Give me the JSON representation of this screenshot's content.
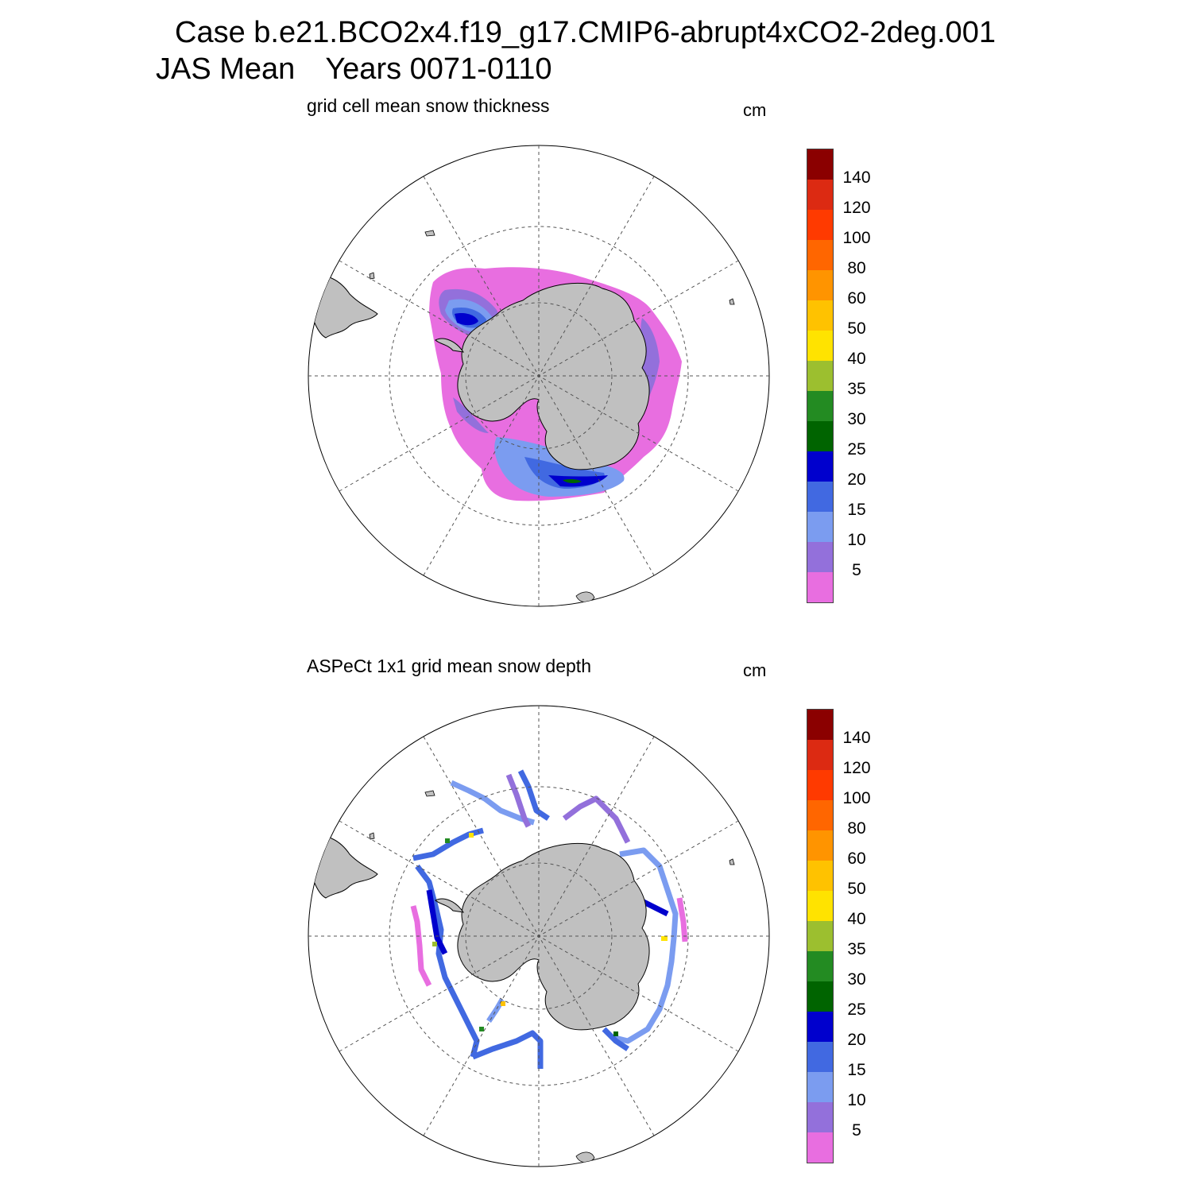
{
  "title": {
    "line1": "Case b.e21.BCO2x4.f19_g17.CMIP6-abrupt4xCO2-2deg.001",
    "season": "JAS Mean",
    "years": "Years 0071-0110"
  },
  "panels": [
    {
      "title": "grid cell mean snow thickness",
      "units": "cm"
    },
    {
      "title": "ASPeCt 1x1 grid mean snow depth",
      "units": "cm"
    }
  ],
  "colorbar": {
    "labels": [
      "140",
      "120",
      "100",
      "80",
      "60",
      "50",
      "40",
      "35",
      "30",
      "25",
      "20",
      "15",
      "10",
      "5"
    ],
    "colors": [
      "#8b0000",
      "#dc2a12",
      "#ff3a00",
      "#ff6600",
      "#ff9400",
      "#ffc200",
      "#ffe300",
      "#9cbf2f",
      "#238b22",
      "#006400",
      "#0000cd",
      "#4169e1",
      "#7b9cf0",
      "#9370db",
      "#e86ee0"
    ]
  },
  "colors": {
    "land": "#c0c0c0",
    "grid": "#555555"
  }
}
